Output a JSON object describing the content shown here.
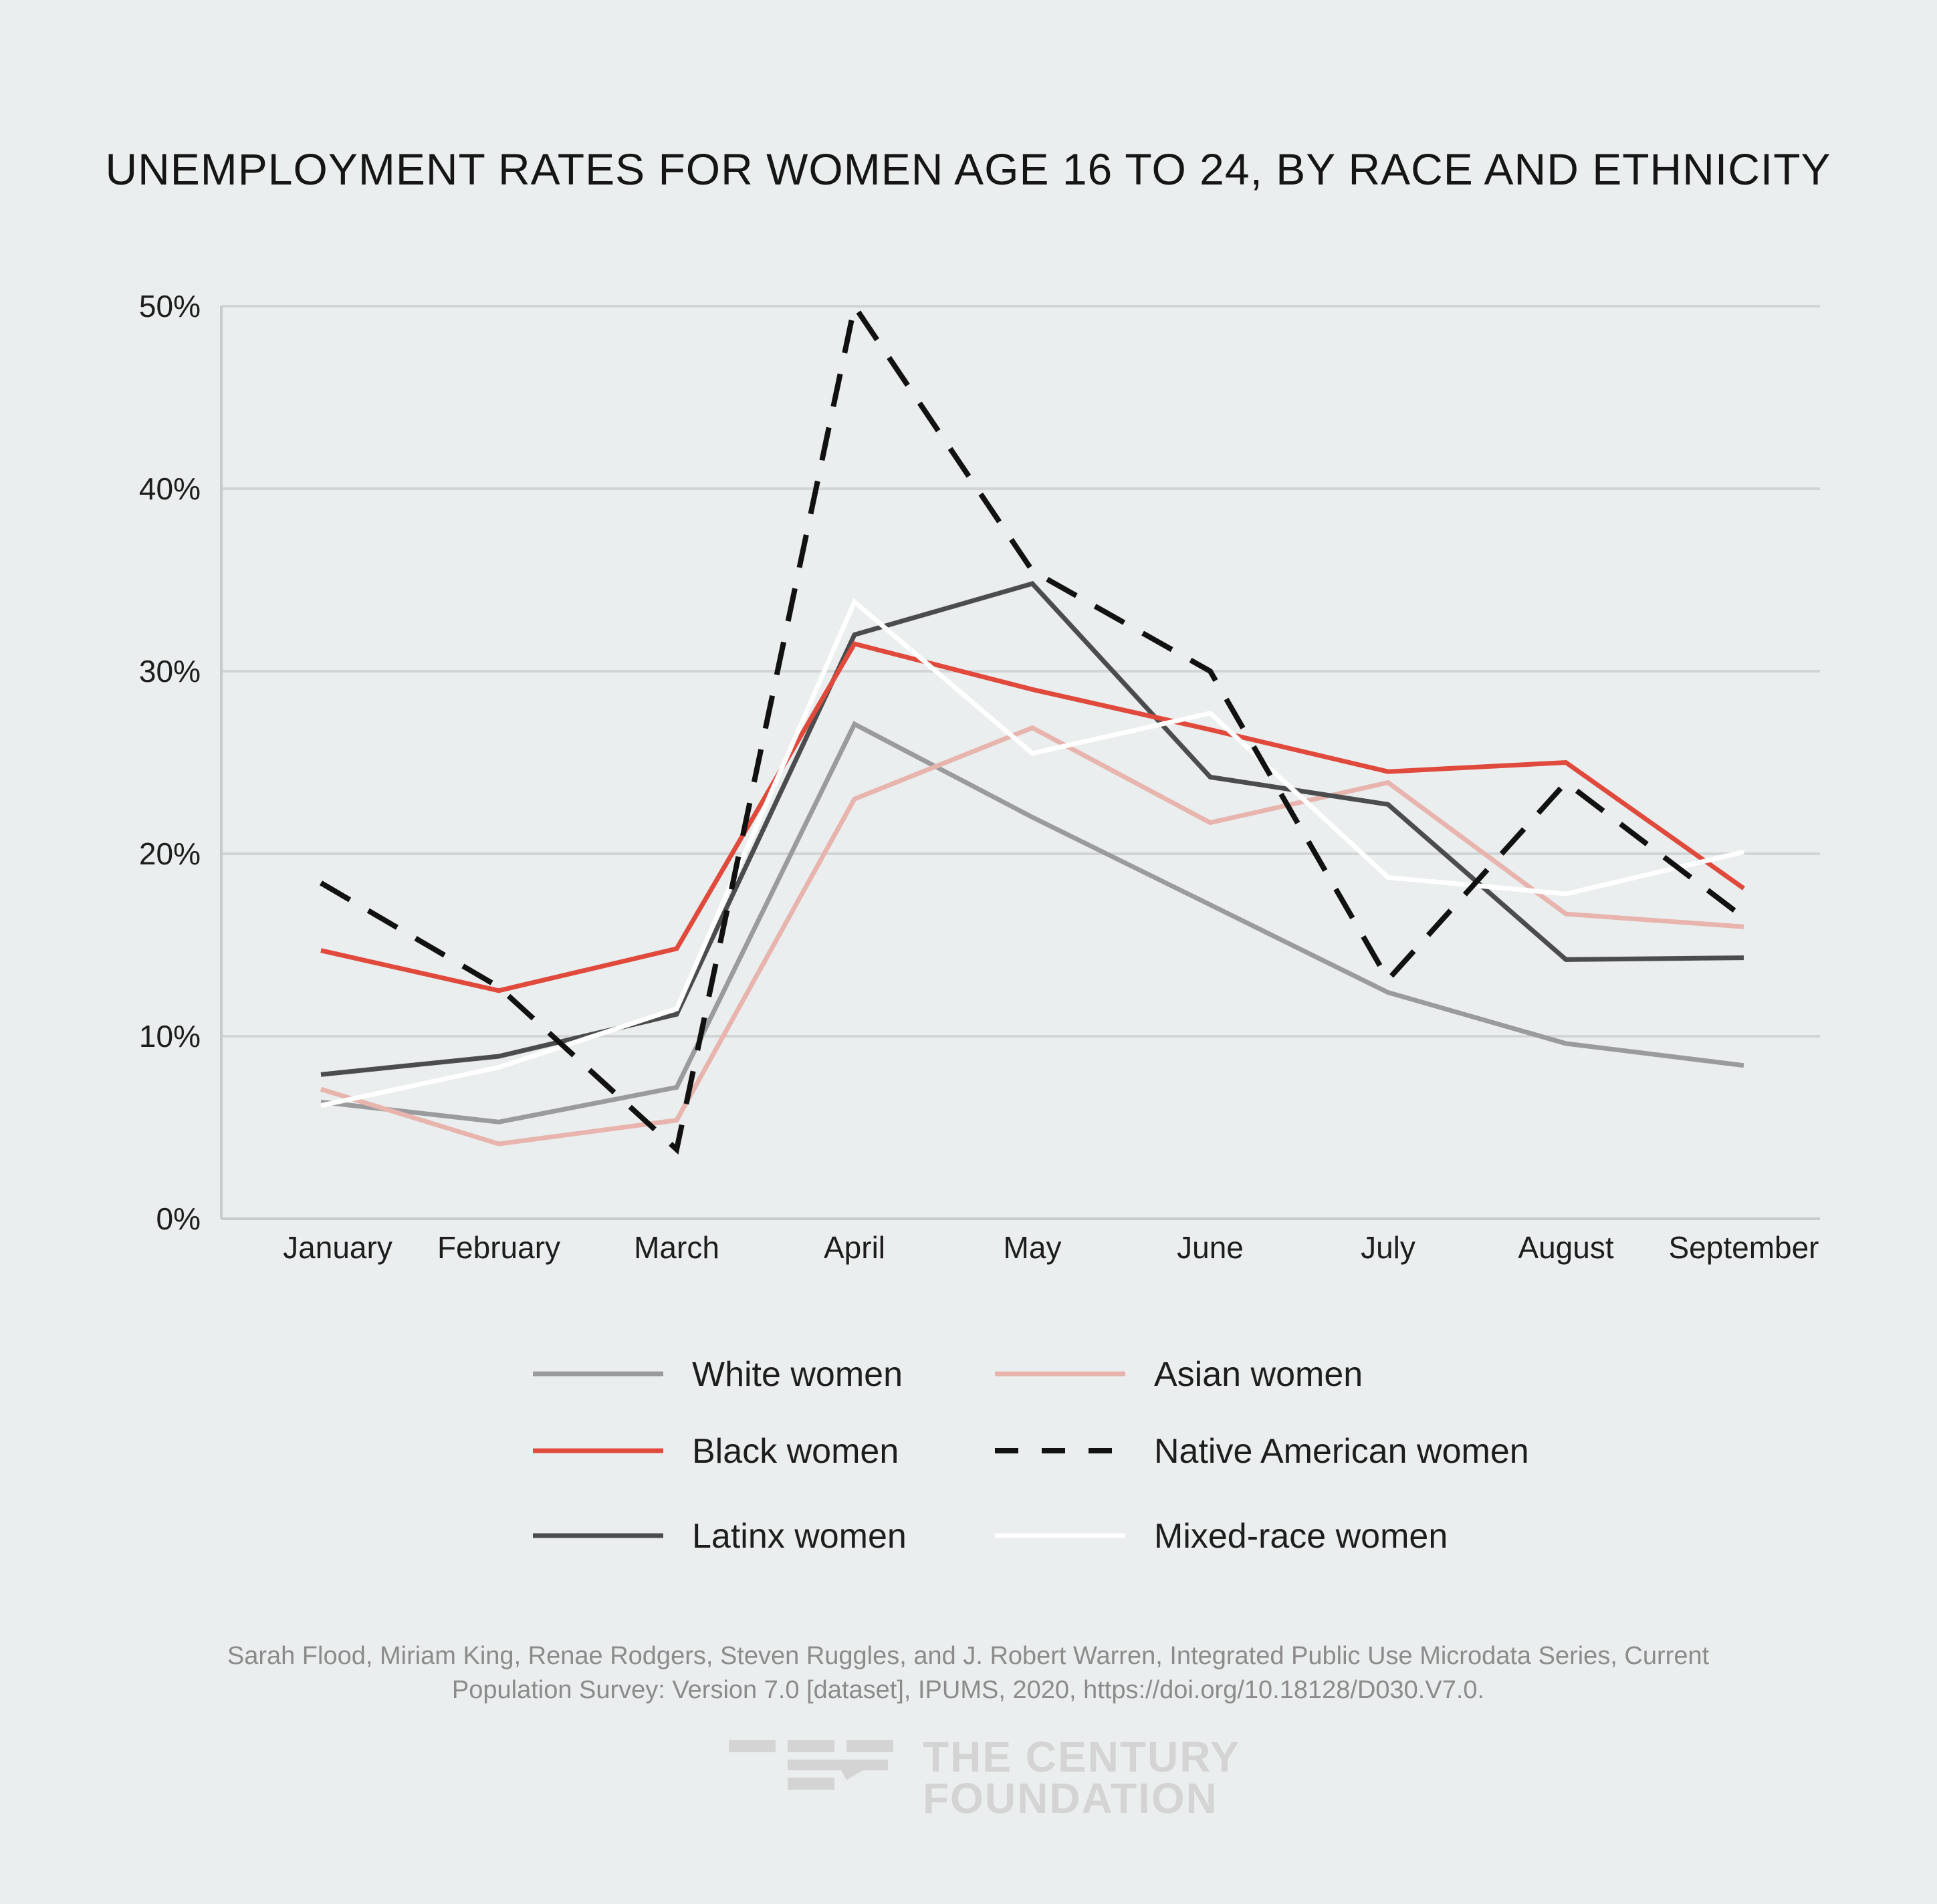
{
  "chart_data": {
    "type": "line",
    "title": "UNEMPLOYMENT RATES FOR WOMEN AGE 16 TO 24, BY RACE AND ETHNICITY",
    "xlabel": "",
    "ylabel": "",
    "categories": [
      "January",
      "February",
      "March",
      "April",
      "May",
      "June",
      "July",
      "August",
      "September"
    ],
    "ylim": [
      0,
      50
    ],
    "yticks": [
      0,
      10,
      20,
      30,
      40,
      50
    ],
    "ytick_labels": [
      "0%",
      "10%",
      "20%",
      "30%",
      "40%",
      "50%"
    ],
    "grid": true,
    "legend_position": "bottom",
    "series": [
      {
        "name": "White women",
        "color": "#9a9b9d",
        "dash": "solid",
        "values": [
          6.4,
          5.3,
          7.2,
          27.1,
          22.0,
          17.2,
          12.4,
          9.6,
          8.4
        ]
      },
      {
        "name": "Asian women",
        "color": "#e8b4ae",
        "dash": "solid",
        "values": [
          7.1,
          4.1,
          5.4,
          23.0,
          26.9,
          21.7,
          23.9,
          16.7,
          16.0
        ]
      },
      {
        "name": "Black women",
        "color": "#e04a3c",
        "dash": "solid",
        "values": [
          14.7,
          12.5,
          14.8,
          31.5,
          29.0,
          26.8,
          24.5,
          25.0,
          18.1
        ]
      },
      {
        "name": "Native American women",
        "color": "#111111",
        "dash": "dashed",
        "values": [
          18.4,
          12.7,
          3.8,
          50.0,
          35.5,
          30.0,
          13.1,
          23.9,
          16.5
        ]
      },
      {
        "name": "Latinx women",
        "color": "#4a4c4e",
        "dash": "solid",
        "values": [
          7.9,
          8.9,
          11.2,
          32.0,
          34.8,
          24.2,
          22.7,
          14.2,
          14.3
        ]
      },
      {
        "name": "Mixed-race women",
        "color": "#ffffff",
        "dash": "solid",
        "values": [
          6.2,
          8.3,
          11.5,
          33.8,
          25.5,
          27.7,
          18.7,
          17.8,
          20.1
        ]
      }
    ],
    "legend": {
      "left": [
        "White women",
        "Black women",
        "Latinx women"
      ],
      "right": [
        "Asian women",
        "Native American women",
        "Mixed-race women"
      ]
    },
    "source": [
      "Sarah Flood, Miriam King, Renae Rodgers, Steven Ruggles, and J. Robert Warren, Integrated Public Use Microdata Series, Current",
      "Population Survey: Version 7.0 [dataset], IPUMS, 2020, https://doi.org/10.18128/D030.V7.0."
    ]
  },
  "logo": {
    "line1": "THE CENTURY",
    "line2": "FOUNDATION"
  }
}
